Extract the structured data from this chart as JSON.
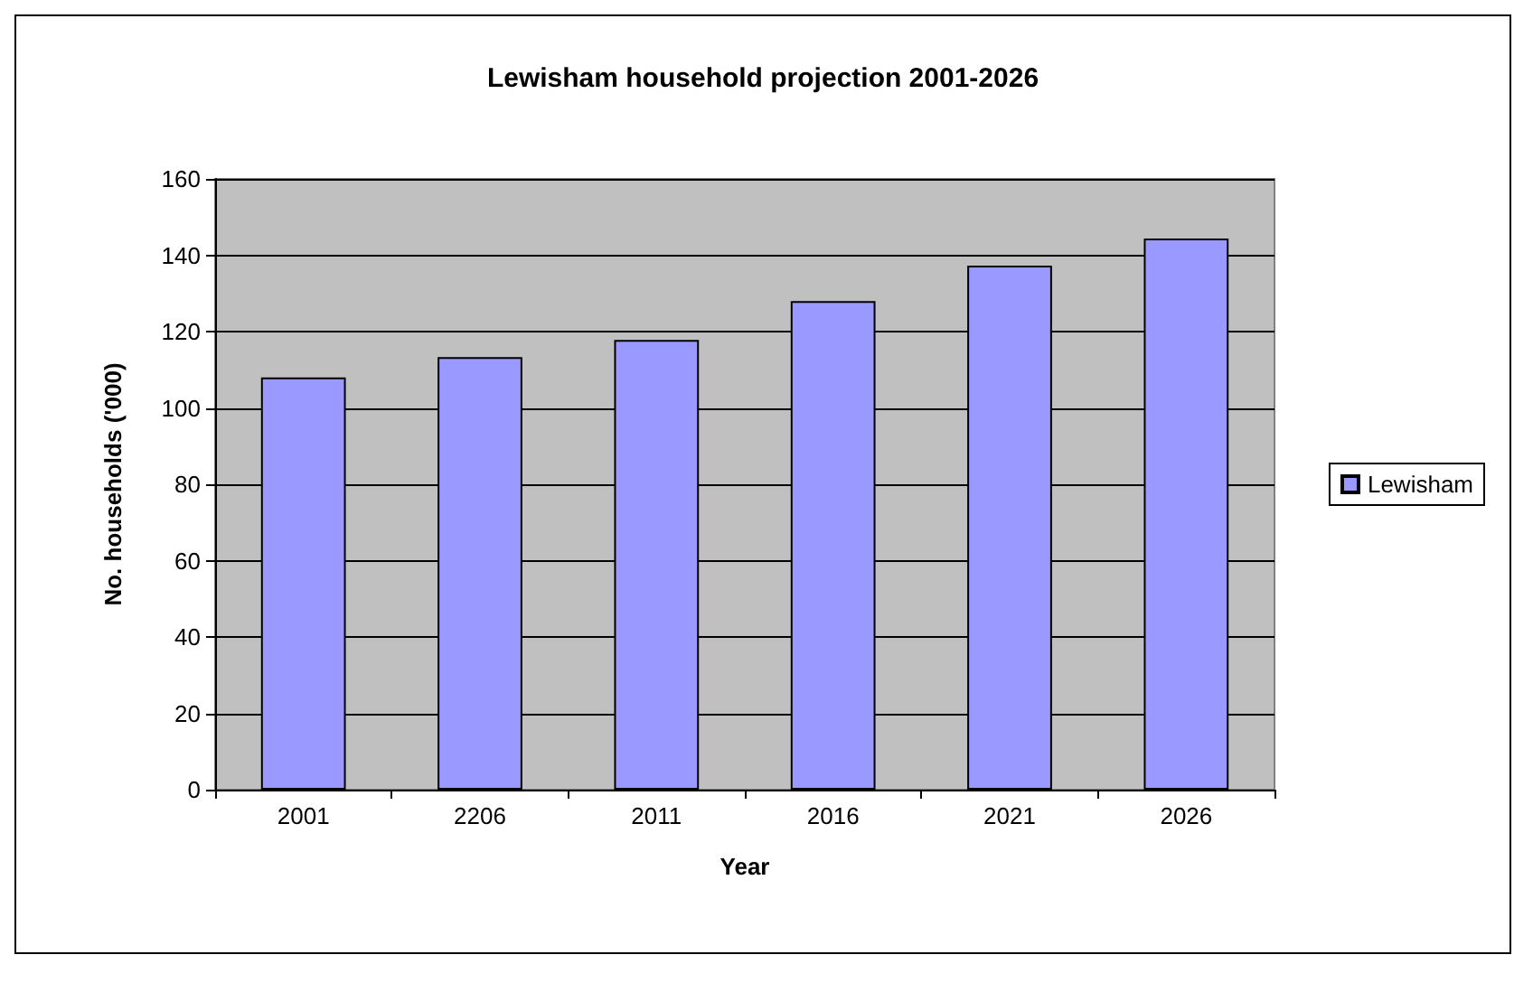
{
  "chart_data": {
    "type": "bar",
    "title": "Lewisham household projection 2001-2026",
    "xlabel": "Year",
    "ylabel": "No. households ('000)",
    "categories": [
      "2001",
      "2206",
      "2011",
      "2016",
      "2021",
      "2026"
    ],
    "series": [
      {
        "name": "Lewisham",
        "color": "#9999ff",
        "values": [
          108,
          113.3,
          117.8,
          128,
          137.3,
          144.4
        ]
      }
    ],
    "ylim": [
      0,
      160
    ],
    "yticks": [
      0,
      20,
      40,
      60,
      80,
      100,
      120,
      140,
      160
    ],
    "grid": "y",
    "legend": "right"
  }
}
